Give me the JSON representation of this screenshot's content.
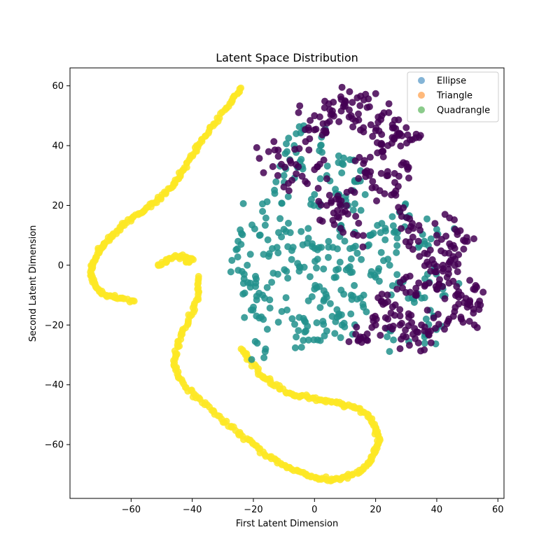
{
  "chart_data": {
    "type": "scatter",
    "title": "Latent Space Distribution",
    "xlabel": "First Latent Dimension",
    "ylabel": "Second Latent Dimension",
    "xlim": [
      -80,
      62
    ],
    "ylim": [
      -78,
      66
    ],
    "xticks": [
      -60,
      -40,
      -20,
      0,
      20,
      40,
      60
    ],
    "yticks": [
      -60,
      -40,
      -20,
      0,
      20,
      40,
      60
    ],
    "grid": false,
    "legend_position": "top-right",
    "legend": [
      {
        "label": "Ellipse",
        "color": "#1f77b4"
      },
      {
        "label": "Triangle",
        "color": "#ff7f0e"
      },
      {
        "label": "Quadrangle",
        "color": "#2ca02c"
      }
    ],
    "point_colors": {
      "cluster_purple": "#440154",
      "cluster_teal": "#21918c",
      "cluster_yellow": "#fde725"
    },
    "series": [
      {
        "color_key": "cluster_yellow",
        "kind": "curve",
        "points": [
          [
            -24,
            59
          ],
          [
            -27,
            55
          ],
          [
            -31,
            50
          ],
          [
            -35,
            44
          ],
          [
            -38,
            40
          ],
          [
            -41,
            35
          ],
          [
            -44,
            30
          ],
          [
            -47,
            26
          ],
          [
            -51,
            22
          ],
          [
            -55,
            19
          ],
          [
            -59,
            16
          ],
          [
            -63,
            13
          ],
          [
            -66,
            10
          ],
          [
            -69,
            7
          ],
          [
            -71,
            4
          ],
          [
            -73,
            0
          ],
          [
            -73,
            -4
          ],
          [
            -71,
            -8
          ],
          [
            -68,
            -10
          ],
          [
            -64,
            -11
          ],
          [
            -59,
            -12
          ]
        ]
      },
      {
        "color_key": "cluster_yellow",
        "kind": "curve",
        "points": [
          [
            -51,
            0
          ],
          [
            -48,
            2
          ],
          [
            -44,
            3
          ],
          [
            -40,
            2
          ],
          [
            -41,
            2
          ],
          [
            -42,
            1
          ]
        ]
      },
      {
        "color_key": "cluster_yellow",
        "kind": "curve",
        "points": [
          [
            -38,
            -4
          ],
          [
            -38,
            -10
          ],
          [
            -40,
            -16
          ],
          [
            -43,
            -22
          ],
          [
            -45,
            -28
          ],
          [
            -46,
            -33
          ],
          [
            -44,
            -38
          ],
          [
            -40,
            -43
          ],
          [
            -35,
            -47
          ],
          [
            -30,
            -52
          ],
          [
            -25,
            -56
          ],
          [
            -20,
            -60
          ],
          [
            -15,
            -64
          ],
          [
            -10,
            -67
          ],
          [
            -5,
            -69
          ],
          [
            0,
            -71
          ],
          [
            5,
            -72
          ],
          [
            10,
            -71
          ],
          [
            15,
            -69
          ],
          [
            18,
            -66
          ],
          [
            20,
            -62
          ],
          [
            21,
            -58
          ],
          [
            20,
            -54
          ],
          [
            17,
            -50
          ],
          [
            12,
            -47
          ],
          [
            7,
            -46
          ],
          [
            2,
            -45
          ],
          [
            -3,
            -44
          ],
          [
            -8,
            -43
          ],
          [
            -13,
            -40
          ],
          [
            -17,
            -37
          ],
          [
            -21,
            -32
          ],
          [
            -24,
            -28
          ]
        ]
      },
      {
        "color_key": "cluster_teal",
        "kind": "cloud",
        "points": [
          [
            -25,
            8
          ],
          [
            -22,
            0
          ],
          [
            -21,
            -6
          ],
          [
            -18,
            10
          ],
          [
            -17,
            -10
          ],
          [
            -15,
            3
          ],
          [
            -12,
            -3
          ],
          [
            -10,
            12
          ],
          [
            -9,
            -15
          ],
          [
            -7,
            6
          ],
          [
            -5,
            -2
          ],
          [
            -3,
            -19
          ],
          [
            -2,
            9
          ],
          [
            0,
            -8
          ],
          [
            1,
            2
          ],
          [
            3,
            -12
          ],
          [
            4,
            -22
          ],
          [
            6,
            6
          ],
          [
            7,
            -4
          ],
          [
            8,
            -17
          ],
          [
            9,
            12
          ],
          [
            11,
            -1
          ],
          [
            12,
            -10
          ],
          [
            14,
            4
          ],
          [
            16,
            -14
          ],
          [
            18,
            10
          ],
          [
            20,
            -4
          ],
          [
            22,
            14
          ],
          [
            24,
            2
          ],
          [
            25,
            -22
          ],
          [
            26,
            11
          ],
          [
            28,
            -6
          ],
          [
            30,
            16
          ],
          [
            32,
            -11
          ],
          [
            34,
            6
          ],
          [
            36,
            -24
          ],
          [
            37,
            -3
          ],
          [
            39,
            -17
          ],
          [
            40,
            12
          ],
          [
            42,
            -8
          ],
          [
            -16,
            -28
          ],
          [
            -17,
            18
          ],
          [
            -13,
            24
          ],
          [
            -10,
            30
          ],
          [
            -9,
            38
          ],
          [
            -6,
            44
          ],
          [
            -4,
            33
          ],
          [
            -1,
            22
          ],
          [
            2,
            40
          ],
          [
            4,
            30
          ],
          [
            7,
            24
          ],
          [
            9,
            34
          ],
          [
            11,
            20
          ],
          [
            14,
            28
          ],
          [
            -19,
            -17
          ],
          [
            -23,
            -3
          ],
          [
            -20,
            -14
          ],
          [
            -6,
            -24
          ],
          [
            1,
            -25
          ],
          [
            9,
            -20
          ]
        ]
      },
      {
        "color_key": "cluster_purple",
        "kind": "cloud",
        "points": [
          [
            -15,
            38
          ],
          [
            -12,
            30
          ],
          [
            -8,
            35
          ],
          [
            -5,
            39
          ],
          [
            -2,
            46
          ],
          [
            0,
            50
          ],
          [
            3,
            45
          ],
          [
            5,
            52
          ],
          [
            8,
            48
          ],
          [
            10,
            55
          ],
          [
            12,
            50
          ],
          [
            14,
            56
          ],
          [
            16,
            46
          ],
          [
            18,
            53
          ],
          [
            20,
            45
          ],
          [
            22,
            50
          ],
          [
            24,
            40
          ],
          [
            26,
            46
          ],
          [
            28,
            44
          ],
          [
            30,
            46
          ],
          [
            32,
            42
          ],
          [
            -3,
            28
          ],
          [
            0,
            32
          ],
          [
            4,
            20
          ],
          [
            6,
            15
          ],
          [
            8,
            22
          ],
          [
            10,
            18
          ],
          [
            12,
            25
          ],
          [
            14,
            10
          ],
          [
            16,
            34
          ],
          [
            18,
            30
          ],
          [
            20,
            26
          ],
          [
            22,
            38
          ],
          [
            24,
            30
          ],
          [
            26,
            24
          ],
          [
            28,
            18
          ],
          [
            30,
            34
          ],
          [
            32,
            14
          ],
          [
            34,
            8
          ],
          [
            36,
            4
          ],
          [
            38,
            -2
          ],
          [
            40,
            10
          ],
          [
            42,
            0
          ],
          [
            44,
            -6
          ],
          [
            46,
            2
          ],
          [
            48,
            -10
          ],
          [
            50,
            -14
          ],
          [
            52,
            -8
          ],
          [
            54,
            -12
          ],
          [
            46,
            12
          ],
          [
            50,
            8
          ],
          [
            44,
            -18
          ],
          [
            48,
            -18
          ],
          [
            52,
            -16
          ],
          [
            30,
            -4
          ],
          [
            33,
            -10
          ],
          [
            27,
            -8
          ],
          [
            22,
            -12
          ],
          [
            24,
            -18
          ],
          [
            28,
            -20
          ],
          [
            30,
            -24
          ],
          [
            34,
            -26
          ],
          [
            36,
            -22
          ],
          [
            40,
            -8
          ],
          [
            42,
            -2
          ],
          [
            44,
            4
          ],
          [
            20,
            -20
          ],
          [
            17,
            -25
          ],
          [
            15,
            -24
          ],
          [
            38,
            -22
          ],
          [
            25,
            -16
          ]
        ]
      }
    ]
  }
}
